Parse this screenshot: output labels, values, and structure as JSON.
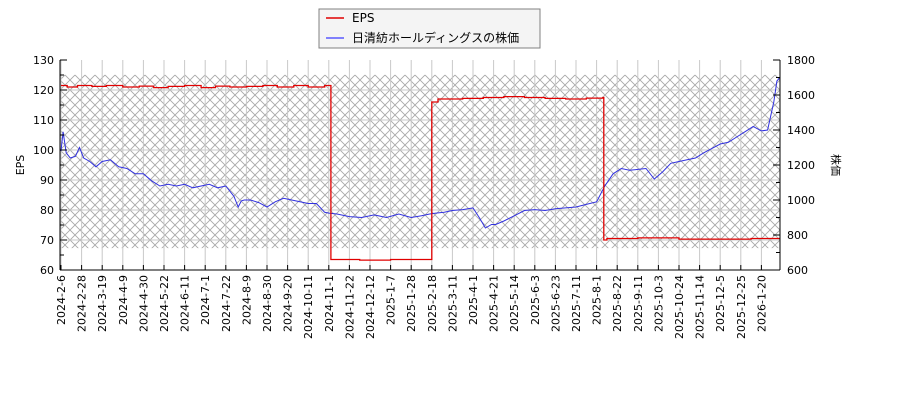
{
  "colors": {
    "eps": "#e00000",
    "price": "#3030e0",
    "grid": "#c8c8c8",
    "hatch": "#a8a8a8",
    "axis": "#000000",
    "legend_border": "#808080",
    "legend_bg": "#f4f4f4"
  },
  "legend": {
    "items": [
      {
        "label": "EPS",
        "color": "#e00000"
      },
      {
        "label": "日清紡ホールディングスの株価",
        "color": "#5a5aff"
      }
    ]
  },
  "chart_data": {
    "type": "line",
    "title": "",
    "xlabel": "",
    "ylabel": "EPS",
    "y2label": "株価",
    "ylim": [
      60,
      130
    ],
    "y2lim": [
      600,
      1800
    ],
    "yticks": [
      60,
      70,
      80,
      90,
      100,
      110,
      120,
      130
    ],
    "y2ticks": [
      600,
      800,
      1000,
      1200,
      1400,
      1600,
      1800
    ],
    "grid": true,
    "legend_position": "top-center",
    "xtick_labels": [
      "2024-2-6",
      "2024-2-28",
      "2024-3-19",
      "2024-4-9",
      "2024-4-30",
      "2024-5-22",
      "2024-6-11",
      "2024-7-1",
      "2024-7-22",
      "2024-8-9",
      "2024-8-30",
      "2024-9-20",
      "2024-10-11",
      "2024-11-1",
      "2024-11-22",
      "2024-12-12",
      "2025-1-7",
      "2025-1-28",
      "2025-2-18",
      "2025-3-11",
      "2025-4-1",
      "2025-4-21",
      "2025-5-14",
      "2025-6-3",
      "2025-6-23",
      "2025-7-11",
      "2025-8-1",
      "2025-8-22",
      "2025-9-11",
      "2025-10-3",
      "2025-10-24",
      "2025-11-14",
      "2025-12-5",
      "2025-12-25",
      "2026-1-20"
    ],
    "hatched_band": {
      "y2_from": 725,
      "y2_to": 1715
    },
    "series": [
      {
        "name": "EPS",
        "axis": "left",
        "x_index": [
          0,
          0.3,
          0.8,
          1.5,
          2.2,
          3.0,
          3.8,
          4.5,
          5.2,
          6.0,
          6.8,
          7.5,
          8.2,
          9.0,
          9.8,
          10.5,
          11.3,
          12.0,
          12.8,
          13.0,
          13.1,
          14.5,
          16.0,
          17.5,
          17.9,
          18.0,
          18.3,
          19.5,
          20.5,
          21.5,
          22.5,
          23.5,
          24.5,
          25.5,
          26.3,
          26.35,
          26.5,
          28.0,
          30.0,
          32.0,
          33.5,
          35.0
        ],
        "values": [
          121.5,
          121.0,
          121.5,
          121.2,
          121.5,
          121.0,
          121.3,
          120.8,
          121.2,
          121.5,
          120.8,
          121.3,
          121.0,
          121.2,
          121.5,
          121.0,
          121.5,
          121.0,
          121.5,
          121.5,
          63.5,
          63.3,
          63.5,
          63.5,
          63.5,
          116.0,
          117.0,
          117.2,
          117.5,
          117.8,
          117.5,
          117.2,
          117.0,
          117.3,
          117.5,
          70.0,
          70.5,
          70.7,
          70.3,
          70.3,
          70.5,
          70.3
        ]
      },
      {
        "name": "日清紡ホールディングスの株価",
        "axis": "right",
        "x_index": [
          0,
          0.1,
          0.25,
          0.45,
          0.7,
          0.9,
          1.1,
          1.4,
          1.7,
          2.0,
          2.4,
          2.8,
          3.2,
          3.6,
          4.0,
          4.4,
          4.8,
          5.2,
          5.6,
          6.0,
          6.4,
          6.8,
          7.2,
          7.6,
          8.0,
          8.4,
          8.6,
          8.75,
          8.9,
          9.2,
          9.6,
          10.0,
          10.4,
          10.8,
          11.2,
          11.6,
          12.0,
          12.4,
          12.8,
          13.0,
          13.4,
          14.0,
          14.6,
          15.2,
          15.8,
          16.4,
          17.0,
          17.5,
          17.9,
          18.2,
          18.6,
          19.0,
          19.5,
          20.0,
          20.3,
          20.6,
          20.9,
          21.1,
          21.5,
          22.0,
          22.5,
          23.0,
          23.5,
          24.0,
          24.5,
          25.0,
          25.5,
          26.0,
          26.4,
          26.8,
          27.2,
          27.6,
          28.0,
          28.4,
          28.8,
          29.2,
          29.6,
          30.0,
          30.4,
          30.8,
          31.2,
          31.6,
          32.0,
          32.4,
          32.8,
          33.2,
          33.6,
          34.0,
          34.3,
          34.6,
          34.75,
          34.9,
          35.0
        ],
        "values": [
          1280,
          1390,
          1270,
          1240,
          1250,
          1300,
          1240,
          1220,
          1190,
          1220,
          1230,
          1190,
          1180,
          1150,
          1150,
          1110,
          1080,
          1090,
          1080,
          1090,
          1070,
          1080,
          1090,
          1070,
          1080,
          1020,
          960,
          995,
          1000,
          1000,
          985,
          960,
          990,
          1010,
          1000,
          990,
          980,
          980,
          930,
          925,
          920,
          905,
          900,
          915,
          900,
          920,
          900,
          910,
          920,
          925,
          930,
          940,
          945,
          955,
          900,
          840,
          860,
          860,
          880,
          910,
          940,
          945,
          940,
          950,
          955,
          960,
          975,
          990,
          1080,
          1150,
          1180,
          1170,
          1175,
          1180,
          1120,
          1160,
          1210,
          1220,
          1230,
          1240,
          1270,
          1295,
          1320,
          1330,
          1360,
          1390,
          1420,
          1395,
          1400,
          1560,
          1680,
          1700,
          1690
        ]
      }
    ]
  }
}
